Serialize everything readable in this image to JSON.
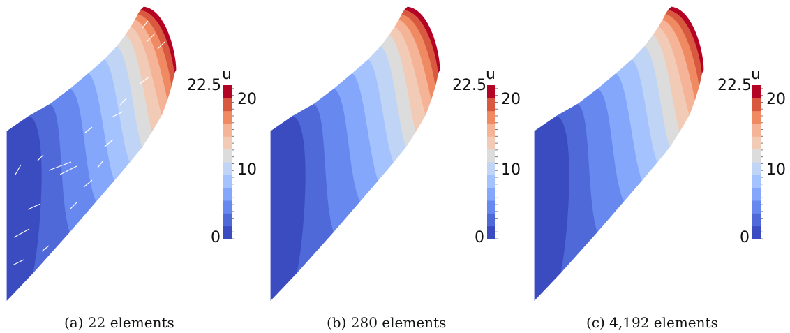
{
  "colors": {
    "palette": [
      "#3b4cc0",
      "#4f69d9",
      "#6788ee",
      "#84a7fc",
      "#a3c2fe",
      "#c0d4f5",
      "#dddcdc",
      "#f2cbb7",
      "#f5b497",
      "#ef8a62",
      "#d8593f",
      "#b40426"
    ]
  },
  "colorbar": {
    "variable": "u",
    "max_label": "22.5",
    "ticks": [
      "20",
      "10",
      "0"
    ]
  },
  "panels": [
    {
      "caption": "(a) 22 elements",
      "defects": true
    },
    {
      "caption": "(b) 280 elements",
      "defects": false
    },
    {
      "caption": "(c) 4,192 elements",
      "defects": false
    }
  ]
}
